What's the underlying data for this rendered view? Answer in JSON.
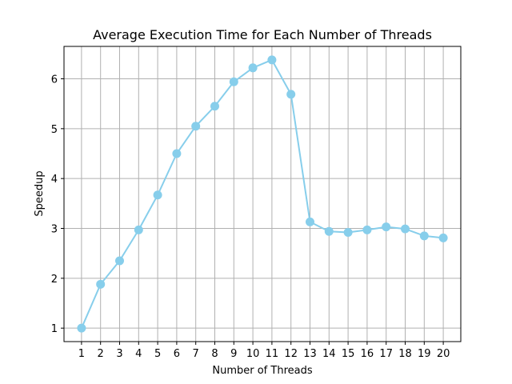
{
  "chart_data": {
    "type": "line",
    "title": "Average Execution Time for Each Number of Threads",
    "xlabel": "Number of Threads",
    "ylabel": "Speedup",
    "x": [
      1,
      2,
      3,
      4,
      5,
      6,
      7,
      8,
      9,
      10,
      11,
      12,
      13,
      14,
      15,
      16,
      17,
      18,
      19,
      20
    ],
    "series": [
      {
        "values": [
          1.0,
          1.88,
          2.35,
          2.97,
          3.67,
          4.5,
          5.05,
          5.45,
          5.94,
          6.22,
          6.38,
          5.69,
          3.13,
          2.94,
          2.92,
          2.97,
          3.03,
          2.99,
          2.85,
          2.81
        ],
        "color": "#87ceeb",
        "marker": "circle"
      }
    ],
    "xticks": [
      "1",
      "2",
      "3",
      "4",
      "5",
      "6",
      "7",
      "8",
      "9",
      "10",
      "11",
      "12",
      "13",
      "14",
      "15",
      "16",
      "17",
      "18",
      "19",
      "20"
    ],
    "yticks": [
      "1",
      "2",
      "3",
      "4",
      "5",
      "6"
    ],
    "xlim": [
      0.08,
      20.92
    ],
    "ylim": [
      0.73,
      6.65
    ],
    "grid": true,
    "legend": "none"
  }
}
